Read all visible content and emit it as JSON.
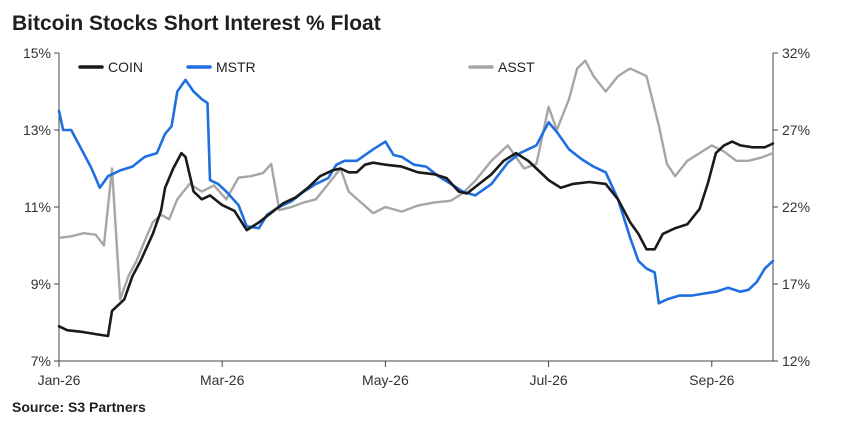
{
  "chart_data": {
    "type": "line",
    "title": "Bitcoin Stocks Short Interest % Float",
    "source": "Source: S3 Partners",
    "x_ticks": [
      "Jan-26",
      "Mar-26",
      "May-26",
      "Jul-26",
      "Sep-26"
    ],
    "x_tick_positions": [
      0,
      2,
      4,
      6,
      8
    ],
    "x_range": [
      0,
      8.75
    ],
    "y_left": {
      "ylim": [
        7,
        15
      ],
      "ticks": [
        7,
        9,
        11,
        13,
        15
      ],
      "tick_labels": [
        "7%",
        "9%",
        "11%",
        "13%",
        "15%"
      ]
    },
    "y_right": {
      "ylim": [
        12,
        32
      ],
      "ticks": [
        12,
        17,
        22,
        27,
        32
      ],
      "tick_labels": [
        "12%",
        "17%",
        "22%",
        "27%",
        "32%"
      ]
    },
    "legend": {
      "placement": "top"
    },
    "series": [
      {
        "name": "COIN",
        "axis": "left",
        "color": "#1a1a1a",
        "points": [
          [
            0,
            7.9
          ],
          [
            0.1,
            7.8
          ],
          [
            0.3,
            7.75
          ],
          [
            0.45,
            7.7
          ],
          [
            0.6,
            7.65
          ],
          [
            0.65,
            8.3
          ],
          [
            0.8,
            8.6
          ],
          [
            0.9,
            9.2
          ],
          [
            1.0,
            9.6
          ],
          [
            1.15,
            10.3
          ],
          [
            1.25,
            10.9
          ],
          [
            1.3,
            11.5
          ],
          [
            1.4,
            12.0
          ],
          [
            1.5,
            12.4
          ],
          [
            1.55,
            12.3
          ],
          [
            1.65,
            11.4
          ],
          [
            1.75,
            11.2
          ],
          [
            1.85,
            11.3
          ],
          [
            2.0,
            11.05
          ],
          [
            2.15,
            10.9
          ],
          [
            2.3,
            10.4
          ],
          [
            2.45,
            10.6
          ],
          [
            2.6,
            10.85
          ],
          [
            2.75,
            11.1
          ],
          [
            2.9,
            11.25
          ],
          [
            3.05,
            11.5
          ],
          [
            3.2,
            11.8
          ],
          [
            3.35,
            11.95
          ],
          [
            3.45,
            12.0
          ],
          [
            3.55,
            11.9
          ],
          [
            3.65,
            11.9
          ],
          [
            3.75,
            12.1
          ],
          [
            3.85,
            12.15
          ],
          [
            4.0,
            12.1
          ],
          [
            4.2,
            12.05
          ],
          [
            4.4,
            11.9
          ],
          [
            4.6,
            11.85
          ],
          [
            4.75,
            11.75
          ],
          [
            4.9,
            11.4
          ],
          [
            5.0,
            11.35
          ],
          [
            5.15,
            11.6
          ],
          [
            5.3,
            11.85
          ],
          [
            5.45,
            12.2
          ],
          [
            5.6,
            12.4
          ],
          [
            5.75,
            12.2
          ],
          [
            5.85,
            12.0
          ],
          [
            6.0,
            11.7
          ],
          [
            6.15,
            11.5
          ],
          [
            6.3,
            11.6
          ],
          [
            6.5,
            11.65
          ],
          [
            6.7,
            11.6
          ],
          [
            6.85,
            11.2
          ],
          [
            7.0,
            10.6
          ],
          [
            7.1,
            10.3
          ],
          [
            7.2,
            9.9
          ],
          [
            7.3,
            9.9
          ],
          [
            7.4,
            10.3
          ],
          [
            7.55,
            10.45
          ],
          [
            7.7,
            10.55
          ],
          [
            7.85,
            10.95
          ],
          [
            7.95,
            11.6
          ],
          [
            8.05,
            12.4
          ],
          [
            8.15,
            12.6
          ],
          [
            8.25,
            12.7
          ],
          [
            8.35,
            12.6
          ],
          [
            8.5,
            12.55
          ],
          [
            8.65,
            12.55
          ],
          [
            8.75,
            12.65
          ]
        ]
      },
      {
        "name": "MSTR",
        "axis": "left",
        "color": "#1f6fe0",
        "points": [
          [
            0,
            13.5
          ],
          [
            0.05,
            13.0
          ],
          [
            0.15,
            13.0
          ],
          [
            0.3,
            12.4
          ],
          [
            0.4,
            12.0
          ],
          [
            0.5,
            11.5
          ],
          [
            0.6,
            11.8
          ],
          [
            0.75,
            11.95
          ],
          [
            0.9,
            12.05
          ],
          [
            1.05,
            12.3
          ],
          [
            1.2,
            12.4
          ],
          [
            1.3,
            12.9
          ],
          [
            1.38,
            13.1
          ],
          [
            1.45,
            14.0
          ],
          [
            1.55,
            14.3
          ],
          [
            1.65,
            14.0
          ],
          [
            1.75,
            13.8
          ],
          [
            1.82,
            13.7
          ],
          [
            1.85,
            11.7
          ],
          [
            1.95,
            11.6
          ],
          [
            2.05,
            11.4
          ],
          [
            2.2,
            11.05
          ],
          [
            2.3,
            10.5
          ],
          [
            2.45,
            10.45
          ],
          [
            2.55,
            10.8
          ],
          [
            2.7,
            11.0
          ],
          [
            2.85,
            11.15
          ],
          [
            3.0,
            11.4
          ],
          [
            3.15,
            11.6
          ],
          [
            3.3,
            11.75
          ],
          [
            3.4,
            12.1
          ],
          [
            3.5,
            12.2
          ],
          [
            3.65,
            12.2
          ],
          [
            3.85,
            12.5
          ],
          [
            4.0,
            12.7
          ],
          [
            4.1,
            12.35
          ],
          [
            4.2,
            12.3
          ],
          [
            4.35,
            12.1
          ],
          [
            4.5,
            12.05
          ],
          [
            4.65,
            11.8
          ],
          [
            4.8,
            11.6
          ],
          [
            4.95,
            11.4
          ],
          [
            5.1,
            11.3
          ],
          [
            5.3,
            11.6
          ],
          [
            5.5,
            12.15
          ],
          [
            5.65,
            12.4
          ],
          [
            5.85,
            12.6
          ],
          [
            6.0,
            13.2
          ],
          [
            6.1,
            12.95
          ],
          [
            6.25,
            12.5
          ],
          [
            6.4,
            12.25
          ],
          [
            6.55,
            12.05
          ],
          [
            6.7,
            11.9
          ],
          [
            6.85,
            11.2
          ],
          [
            7.0,
            10.2
          ],
          [
            7.1,
            9.6
          ],
          [
            7.2,
            9.4
          ],
          [
            7.3,
            9.3
          ],
          [
            7.35,
            8.5
          ],
          [
            7.45,
            8.6
          ],
          [
            7.6,
            8.7
          ],
          [
            7.75,
            8.7
          ],
          [
            7.9,
            8.75
          ],
          [
            8.05,
            8.8
          ],
          [
            8.2,
            8.9
          ],
          [
            8.35,
            8.8
          ],
          [
            8.45,
            8.85
          ],
          [
            8.55,
            9.05
          ],
          [
            8.65,
            9.4
          ],
          [
            8.75,
            9.6
          ]
        ]
      },
      {
        "name": "ASST",
        "axis": "right",
        "color": "#a6a6a6",
        "points": [
          [
            0,
            20.0
          ],
          [
            0.15,
            20.1
          ],
          [
            0.3,
            20.3
          ],
          [
            0.45,
            20.2
          ],
          [
            0.55,
            19.5
          ],
          [
            0.65,
            24.5
          ],
          [
            0.75,
            16.0
          ],
          [
            0.85,
            17.5
          ],
          [
            0.95,
            18.5
          ],
          [
            1.05,
            19.8
          ],
          [
            1.15,
            21.0
          ],
          [
            1.25,
            21.5
          ],
          [
            1.35,
            21.2
          ],
          [
            1.45,
            22.5
          ],
          [
            1.6,
            23.5
          ],
          [
            1.75,
            23.0
          ],
          [
            1.9,
            23.4
          ],
          [
            2.05,
            22.5
          ],
          [
            2.2,
            23.9
          ],
          [
            2.35,
            24.0
          ],
          [
            2.5,
            24.2
          ],
          [
            2.6,
            24.8
          ],
          [
            2.7,
            21.8
          ],
          [
            2.85,
            22.0
          ],
          [
            3.0,
            22.3
          ],
          [
            3.15,
            22.5
          ],
          [
            3.3,
            23.5
          ],
          [
            3.45,
            24.5
          ],
          [
            3.55,
            23.0
          ],
          [
            3.7,
            22.3
          ],
          [
            3.85,
            21.6
          ],
          [
            4.0,
            22.0
          ],
          [
            4.2,
            21.7
          ],
          [
            4.4,
            22.1
          ],
          [
            4.6,
            22.3
          ],
          [
            4.8,
            22.4
          ],
          [
            4.95,
            22.9
          ],
          [
            5.1,
            23.7
          ],
          [
            5.3,
            25.0
          ],
          [
            5.5,
            26.0
          ],
          [
            5.7,
            24.5
          ],
          [
            5.85,
            24.8
          ],
          [
            6.0,
            28.5
          ],
          [
            6.1,
            27.0
          ],
          [
            6.25,
            29.0
          ],
          [
            6.35,
            31.0
          ],
          [
            6.45,
            31.5
          ],
          [
            6.55,
            30.5
          ],
          [
            6.7,
            29.5
          ],
          [
            6.85,
            30.5
          ],
          [
            7.0,
            31.0
          ],
          [
            7.2,
            30.5
          ],
          [
            7.35,
            27.3
          ],
          [
            7.45,
            24.8
          ],
          [
            7.55,
            24.0
          ],
          [
            7.7,
            25.0
          ],
          [
            7.85,
            25.5
          ],
          [
            8.0,
            26.0
          ],
          [
            8.15,
            25.6
          ],
          [
            8.3,
            25.0
          ],
          [
            8.45,
            25.0
          ],
          [
            8.6,
            25.2
          ],
          [
            8.75,
            25.5
          ]
        ]
      }
    ]
  }
}
